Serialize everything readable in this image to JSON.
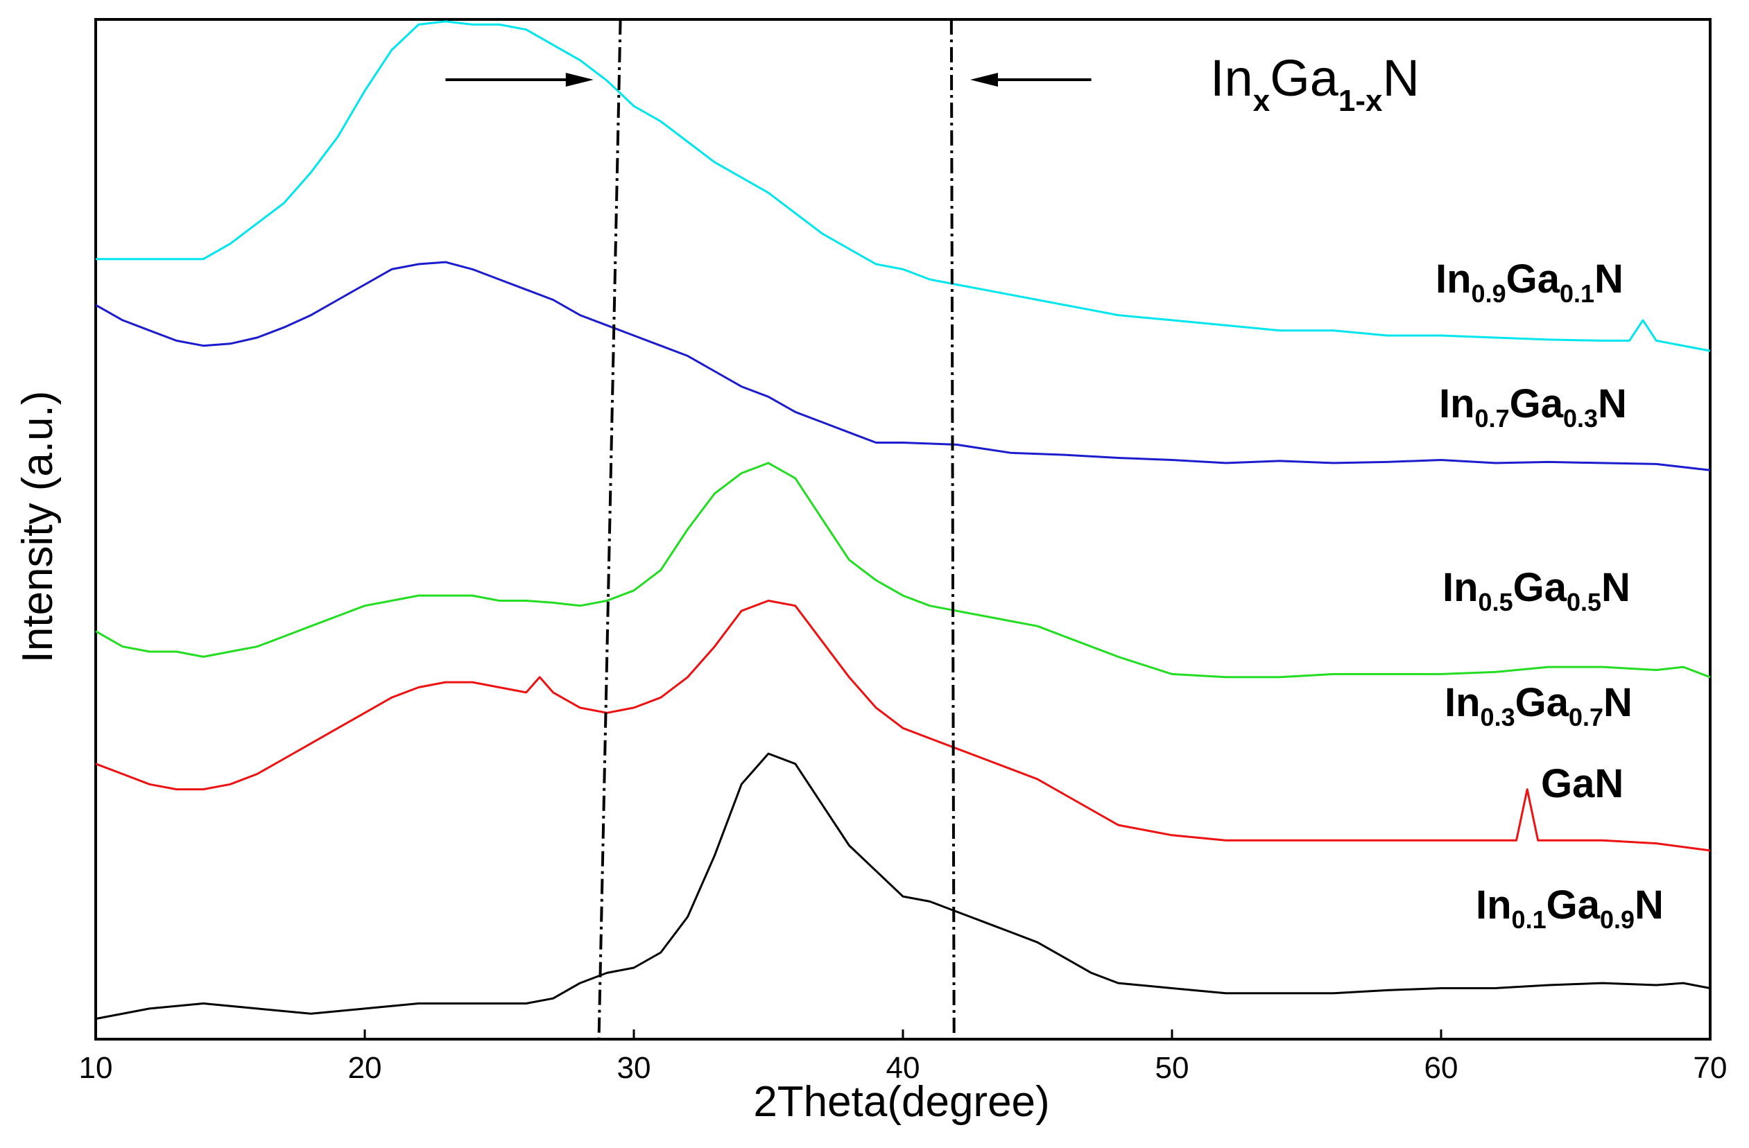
{
  "chart_data": {
    "type": "line",
    "title": "",
    "xlabel": "2Theta(degree)",
    "ylabel": "Intensity (a.u.)",
    "xlim": [
      10,
      70
    ],
    "ylim": [
      0,
      100
    ],
    "xticks": [
      10,
      20,
      30,
      40,
      50,
      60,
      70
    ],
    "y_ticks_shown": false,
    "annotation_formula": {
      "base1": "In",
      "sub1": "x",
      "base2": "Ga",
      "sub2": "1-x",
      "base3": "N"
    },
    "reference_lines": [
      {
        "style": "dash-dot",
        "x_top": 29.5,
        "x_bottom": 28.7
      },
      {
        "style": "dash-dot",
        "x_top": 41.8,
        "x_bottom": 41.9
      }
    ],
    "arrows": [
      {
        "from_x": 23.0,
        "to_x": 28.5,
        "direction": "right"
      },
      {
        "from_x": 47.0,
        "to_x": 42.5,
        "direction": "left"
      }
    ],
    "series": [
      {
        "name": "In0.9Ga0.1N",
        "label": {
          "base1": "In",
          "sub1": "0.9",
          "base2": "Ga",
          "sub2": "0.1",
          "base3": "N"
        },
        "color": "#00e5ee",
        "x": [
          10,
          12,
          14,
          15,
          16,
          17,
          18,
          19,
          20,
          21,
          22,
          23,
          24,
          25,
          26,
          27,
          28,
          29,
          30,
          31,
          32,
          33,
          34,
          35,
          36,
          37,
          38,
          39,
          40,
          41,
          42,
          43,
          44,
          45,
          46,
          47,
          48,
          50,
          52,
          54,
          56,
          58,
          60,
          62,
          64,
          66,
          67,
          67.5,
          68,
          70
        ],
        "y": [
          76.5,
          76.5,
          76.5,
          78,
          80,
          82,
          85,
          88.5,
          93,
          97,
          99.5,
          99.8,
          99.5,
          99.5,
          99,
          97.5,
          96,
          94,
          91.5,
          90,
          88,
          86,
          84.5,
          83,
          81,
          79,
          77.5,
          76,
          75.5,
          74.5,
          74,
          73.5,
          73,
          72.5,
          72,
          71.5,
          71,
          70.5,
          70,
          69.5,
          69.5,
          69,
          69,
          68.8,
          68.6,
          68.5,
          68.5,
          70.5,
          68.5,
          67.5
        ]
      },
      {
        "name": "In0.7Ga0.3N",
        "label": {
          "base1": "In",
          "sub1": "0.7",
          "base2": "Ga",
          "sub2": "0.3",
          "base3": "N"
        },
        "color": "#1c1ccf",
        "x": [
          10,
          11,
          12,
          13,
          14,
          15,
          16,
          17,
          18,
          19,
          20,
          21,
          22,
          23,
          24,
          25,
          26,
          27,
          28,
          29,
          30,
          31,
          32,
          33,
          34,
          35,
          36,
          37,
          38,
          39,
          40,
          42,
          44,
          46,
          48,
          50,
          52,
          54,
          56,
          58,
          60,
          62,
          64,
          66,
          68,
          70
        ],
        "y": [
          72,
          70.5,
          69.5,
          68.5,
          68,
          68.2,
          68.8,
          69.8,
          71,
          72.5,
          74,
          75.5,
          76,
          76.2,
          75.5,
          74.5,
          73.5,
          72.5,
          71,
          70,
          69,
          68,
          67,
          65.5,
          64,
          63,
          61.5,
          60.5,
          59.5,
          58.5,
          58.5,
          58.3,
          57.5,
          57.3,
          57,
          56.8,
          56.5,
          56.7,
          56.5,
          56.6,
          56.8,
          56.5,
          56.6,
          56.5,
          56.4,
          55.8
        ]
      },
      {
        "name": "In0.5Ga0.5N",
        "label": {
          "base1": "In",
          "sub1": "0.5",
          "base2": "Ga",
          "sub2": "0.5",
          "base3": "N"
        },
        "color": "#22dd22",
        "x": [
          10,
          11,
          12,
          13,
          14,
          15,
          16,
          17,
          18,
          19,
          20,
          21,
          22,
          23,
          24,
          25,
          26,
          27,
          28,
          29,
          30,
          31,
          32,
          33,
          34,
          35,
          36,
          37,
          38,
          39,
          40,
          41,
          42,
          43,
          44,
          45,
          46,
          47,
          48,
          50,
          52,
          54,
          56,
          58,
          60,
          62,
          64,
          66,
          68,
          69,
          70
        ],
        "y": [
          40,
          38.5,
          38,
          38,
          37.5,
          38,
          38.5,
          39.5,
          40.5,
          41.5,
          42.5,
          43,
          43.5,
          43.5,
          43.5,
          43,
          43,
          42.8,
          42.5,
          43,
          44,
          46,
          50,
          53.5,
          55.5,
          56.5,
          55,
          51,
          47,
          45,
          43.5,
          42.5,
          42,
          41.5,
          41,
          40.5,
          39.5,
          38.5,
          37.5,
          35.8,
          35.5,
          35.5,
          35.8,
          35.8,
          35.8,
          36,
          36.5,
          36.5,
          36.2,
          36.5,
          35.5
        ]
      },
      {
        "name": "In0.3Ga0.7N",
        "label": {
          "base1": "In",
          "sub1": "0.3",
          "base2": "Ga",
          "sub2": "0.7",
          "base3": "N"
        },
        "color": "#ee1111",
        "x": [
          10,
          11,
          12,
          13,
          14,
          15,
          16,
          17,
          18,
          19,
          20,
          21,
          22,
          23,
          24,
          25,
          26,
          26.5,
          27,
          28,
          29,
          30,
          31,
          32,
          33,
          34,
          35,
          36,
          37,
          38,
          39,
          40,
          41,
          42,
          43,
          44,
          45,
          46,
          47,
          48,
          50,
          52,
          54,
          56,
          58,
          60,
          62,
          62.8,
          63.2,
          63.6,
          64,
          66,
          68,
          70
        ],
        "y": [
          27,
          26,
          25,
          24.5,
          24.5,
          25,
          26,
          27.5,
          29,
          30.5,
          32,
          33.5,
          34.5,
          35,
          35,
          34.5,
          34,
          35.5,
          34,
          32.5,
          32,
          32.5,
          33.5,
          35.5,
          38.5,
          42,
          43,
          42.5,
          39,
          35.5,
          32.5,
          30.5,
          29.5,
          28.5,
          27.5,
          26.5,
          25.5,
          24,
          22.5,
          21,
          20,
          19.5,
          19.5,
          19.5,
          19.5,
          19.5,
          19.5,
          19.5,
          24.5,
          19.5,
          19.5,
          19.5,
          19.2,
          18.5
        ]
      },
      {
        "name": "GaN",
        "label": {
          "base1": "GaN"
        },
        "color": "#000000",
        "x": [
          10,
          12,
          14,
          16,
          18,
          20,
          22,
          24,
          26,
          27,
          28,
          29,
          30,
          31,
          32,
          33,
          34,
          35,
          36,
          37,
          38,
          39,
          40,
          41,
          42,
          43,
          44,
          45,
          46,
          47,
          48,
          50,
          52,
          54,
          56,
          58,
          60,
          62,
          64,
          66,
          68,
          69,
          70
        ],
        "y": [
          2,
          3,
          3.5,
          3,
          2.5,
          3,
          3.5,
          3.5,
          3.5,
          4,
          5.5,
          6.5,
          7,
          8.5,
          12,
          18,
          25,
          28,
          27,
          23,
          19,
          16.5,
          14,
          13.5,
          12.5,
          11.5,
          10.5,
          9.5,
          8,
          6.5,
          5.5,
          5,
          4.5,
          4.5,
          4.5,
          4.8,
          5,
          5,
          5.3,
          5.5,
          5.3,
          5.5,
          5
        ]
      }
    ],
    "label_order_top_to_bottom": [
      "In0.9Ga0.1N",
      "In0.7Ga0.3N",
      "In0.5Ga0.5N",
      "In0.3Ga0.7N",
      "GaN",
      "In0.1Ga0.9N"
    ],
    "extra_label": {
      "name": "In0.1Ga0.9N",
      "base1": "In",
      "sub1": "0.1",
      "base2": "Ga",
      "sub2": "0.9",
      "base3": "N"
    }
  }
}
